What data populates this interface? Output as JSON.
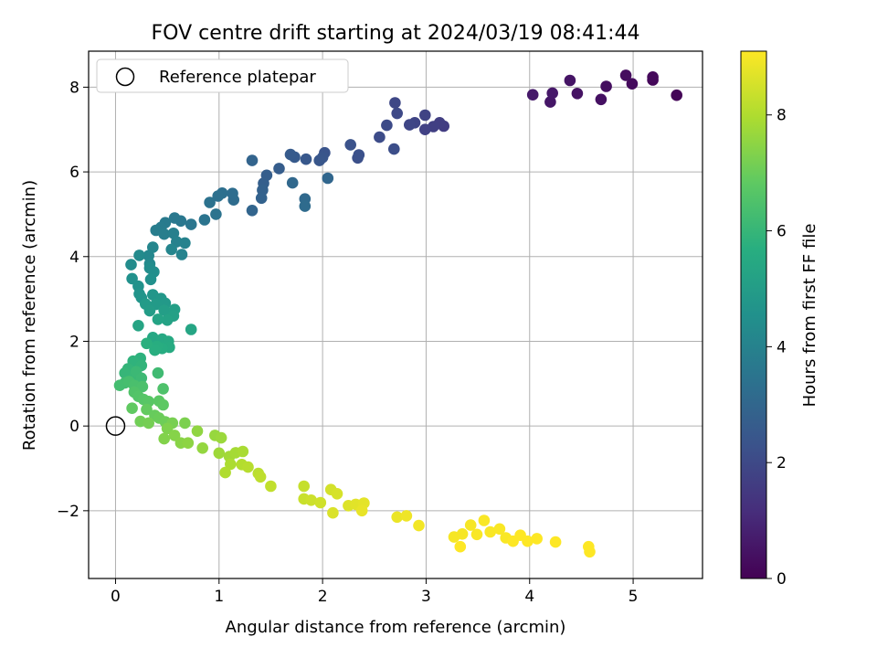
{
  "chart_data": {
    "type": "scatter",
    "title": "FOV centre drift starting at 2024/03/19 08:41:44",
    "xlabel": "Angular distance from reference (arcmin)",
    "ylabel": "Rotation from reference (arcmin)",
    "xlim": [
      -0.26,
      5.67
    ],
    "ylim": [
      -3.6,
      8.85
    ],
    "xticks": [
      0,
      1,
      2,
      3,
      4,
      5
    ],
    "yticks": [
      -2,
      0,
      2,
      4,
      6,
      8
    ],
    "grid": true,
    "legend": {
      "position": "upper-left",
      "entries": [
        "Reference platepar"
      ]
    },
    "reference_point": {
      "x": 0,
      "y": 0,
      "marker": "open-circle"
    },
    "colorbar": {
      "label": "Hours from first FF file",
      "range": [
        0,
        9.1
      ],
      "ticks": [
        0,
        2,
        4,
        6,
        8
      ],
      "colormap": "viridis"
    },
    "points": [
      [
        5.42,
        7.81,
        0.1
      ],
      [
        5.19,
        8.17,
        0.15
      ],
      [
        5.19,
        8.24,
        0.2
      ],
      [
        4.99,
        8.08,
        0.25
      ],
      [
        4.93,
        8.28,
        0.3
      ],
      [
        4.74,
        8.02,
        0.35
      ],
      [
        4.69,
        7.71,
        0.4
      ],
      [
        4.46,
        7.85,
        0.45
      ],
      [
        4.39,
        8.16,
        0.5
      ],
      [
        4.2,
        7.65,
        0.55
      ],
      [
        4.22,
        7.86,
        0.6
      ],
      [
        4.03,
        7.82,
        0.65
      ],
      [
        3.17,
        7.08,
        1.6
      ],
      [
        3.13,
        7.16,
        1.65
      ],
      [
        3.07,
        7.07,
        1.7
      ],
      [
        2.99,
        7.0,
        1.75
      ],
      [
        2.99,
        7.34,
        1.8
      ],
      [
        2.89,
        7.16,
        1.85
      ],
      [
        2.84,
        7.11,
        1.9
      ],
      [
        2.7,
        7.63,
        1.95
      ],
      [
        2.72,
        7.38,
        2.0
      ],
      [
        2.62,
        7.1,
        2.05
      ],
      [
        2.55,
        6.82,
        2.1
      ],
      [
        2.69,
        6.54,
        2.15
      ],
      [
        2.34,
        6.33,
        2.2
      ],
      [
        2.35,
        6.4,
        2.25
      ],
      [
        2.27,
        6.64,
        2.3
      ],
      [
        2.02,
        6.45,
        2.35
      ],
      [
        2.0,
        6.34,
        2.4
      ],
      [
        1.97,
        6.27,
        2.45
      ],
      [
        1.84,
        6.3,
        2.5
      ],
      [
        1.73,
        6.35,
        2.55
      ],
      [
        1.69,
        6.41,
        2.6
      ],
      [
        1.58,
        6.08,
        2.65
      ],
      [
        1.46,
        5.92,
        2.7
      ],
      [
        1.43,
        5.73,
        2.75
      ],
      [
        1.42,
        5.57,
        2.8
      ],
      [
        1.41,
        5.38,
        2.85
      ],
      [
        1.32,
        6.27,
        2.9
      ],
      [
        1.32,
        5.09,
        2.95
      ],
      [
        2.05,
        5.85,
        3.0
      ],
      [
        1.71,
        5.74,
        3.05
      ],
      [
        1.83,
        5.36,
        3.1
      ],
      [
        1.83,
        5.19,
        3.15
      ],
      [
        1.14,
        5.34,
        3.2
      ],
      [
        1.13,
        5.49,
        3.25
      ],
      [
        1.03,
        5.5,
        3.3
      ],
      [
        0.99,
        5.43,
        3.35
      ],
      [
        0.91,
        5.28,
        3.4
      ],
      [
        0.97,
        5.0,
        3.45
      ],
      [
        0.86,
        4.87,
        3.5
      ],
      [
        0.73,
        4.76,
        3.55
      ],
      [
        0.63,
        4.84,
        3.6
      ],
      [
        0.57,
        4.91,
        3.65
      ],
      [
        0.48,
        4.8,
        3.7
      ],
      [
        0.44,
        4.69,
        3.75
      ],
      [
        0.39,
        4.62,
        3.8
      ],
      [
        0.47,
        4.53,
        3.85
      ],
      [
        0.56,
        4.55,
        3.9
      ],
      [
        0.59,
        4.35,
        3.95
      ],
      [
        0.67,
        4.32,
        4.0
      ],
      [
        0.64,
        4.05,
        4.05
      ],
      [
        0.54,
        4.17,
        4.1
      ],
      [
        0.36,
        4.22,
        4.15
      ],
      [
        0.32,
        4.02,
        4.2
      ],
      [
        0.33,
        3.83,
        4.25
      ],
      [
        0.23,
        4.03,
        4.3
      ],
      [
        0.15,
        3.81,
        4.35
      ],
      [
        0.33,
        3.73,
        4.4
      ],
      [
        0.37,
        3.64,
        4.45
      ],
      [
        0.34,
        3.46,
        4.5
      ],
      [
        0.16,
        3.48,
        4.55
      ],
      [
        0.22,
        3.3,
        4.6
      ],
      [
        0.23,
        3.12,
        4.65
      ],
      [
        0.25,
        3.03,
        4.7
      ],
      [
        0.36,
        3.1,
        4.75
      ],
      [
        0.44,
        3.01,
        4.8
      ],
      [
        0.48,
        2.9,
        4.85
      ],
      [
        0.39,
        2.87,
        4.9
      ],
      [
        0.29,
        2.88,
        4.95
      ],
      [
        0.33,
        2.72,
        5.0
      ],
      [
        0.47,
        2.73,
        5.05
      ],
      [
        0.57,
        2.75,
        5.1
      ],
      [
        0.56,
        2.6,
        5.15
      ],
      [
        0.5,
        2.5,
        5.2
      ],
      [
        0.41,
        2.52,
        5.25
      ],
      [
        0.22,
        2.37,
        5.3
      ],
      [
        0.73,
        2.28,
        5.35
      ],
      [
        0.36,
        2.09,
        5.4
      ],
      [
        0.45,
        2.05,
        5.45
      ],
      [
        0.51,
        2.0,
        5.5
      ],
      [
        0.52,
        1.86,
        5.55
      ],
      [
        0.45,
        1.83,
        5.6
      ],
      [
        0.4,
        1.88,
        5.65
      ],
      [
        0.38,
        1.79,
        5.7
      ],
      [
        0.3,
        1.95,
        5.75
      ],
      [
        0.24,
        1.6,
        5.8
      ],
      [
        0.17,
        1.53,
        5.85
      ],
      [
        0.25,
        1.43,
        5.9
      ],
      [
        0.12,
        1.35,
        5.95
      ],
      [
        0.09,
        1.25,
        6.0
      ],
      [
        0.19,
        1.2,
        6.05
      ],
      [
        0.2,
        1.28,
        6.1
      ],
      [
        0.25,
        1.13,
        6.15
      ],
      [
        0.41,
        1.25,
        6.2
      ],
      [
        0.09,
        1.02,
        6.25
      ],
      [
        0.04,
        0.96,
        6.3
      ],
      [
        0.13,
        1.05,
        6.35
      ],
      [
        0.18,
        0.96,
        6.4
      ],
      [
        0.26,
        0.93,
        6.45
      ],
      [
        0.46,
        0.88,
        6.5
      ],
      [
        0.18,
        0.8,
        6.55
      ],
      [
        0.22,
        0.7,
        6.6
      ],
      [
        0.27,
        0.63,
        6.65
      ],
      [
        0.32,
        0.58,
        6.7
      ],
      [
        0.42,
        0.59,
        6.75
      ],
      [
        0.46,
        0.5,
        6.8
      ],
      [
        0.16,
        0.42,
        6.85
      ],
      [
        0.3,
        0.39,
        6.9
      ],
      [
        0.38,
        0.25,
        6.95
      ],
      [
        0.42,
        0.19,
        7.0
      ],
      [
        0.48,
        0.1,
        7.05
      ],
      [
        0.24,
        0.11,
        7.1
      ],
      [
        0.32,
        0.07,
        7.15
      ],
      [
        0.55,
        0.07,
        7.2
      ],
      [
        0.67,
        0.07,
        7.25
      ],
      [
        0.5,
        -0.06,
        7.3
      ],
      [
        0.47,
        -0.3,
        7.35
      ],
      [
        0.57,
        -0.22,
        7.4
      ],
      [
        0.63,
        -0.4,
        7.45
      ],
      [
        0.7,
        -0.4,
        7.5
      ],
      [
        0.79,
        -0.12,
        7.55
      ],
      [
        0.84,
        -0.52,
        7.6
      ],
      [
        0.96,
        -0.22,
        7.65
      ],
      [
        1.02,
        -0.28,
        7.7
      ],
      [
        1.0,
        -0.64,
        7.75
      ],
      [
        1.1,
        -0.72,
        7.8
      ],
      [
        1.16,
        -0.63,
        7.85
      ],
      [
        1.23,
        -0.6,
        7.9
      ],
      [
        1.11,
        -0.9,
        7.95
      ],
      [
        1.06,
        -1.1,
        8.0
      ],
      [
        1.22,
        -0.91,
        8.05
      ],
      [
        1.28,
        -0.97,
        8.1
      ],
      [
        1.38,
        -1.12,
        8.15
      ],
      [
        1.4,
        -1.2,
        8.2
      ],
      [
        1.5,
        -1.42,
        8.25
      ],
      [
        1.82,
        -1.42,
        8.3
      ],
      [
        1.82,
        -1.72,
        8.35
      ],
      [
        1.89,
        -1.75,
        8.4
      ],
      [
        1.98,
        -1.81,
        8.45
      ],
      [
        2.08,
        -1.5,
        8.5
      ],
      [
        2.14,
        -1.6,
        8.55
      ],
      [
        2.1,
        -2.05,
        8.6
      ],
      [
        2.25,
        -1.88,
        8.65
      ],
      [
        2.32,
        -1.85,
        8.7
      ],
      [
        2.4,
        -1.82,
        8.75
      ],
      [
        2.38,
        -2.0,
        8.8
      ],
      [
        2.72,
        -2.15,
        8.85
      ],
      [
        2.81,
        -2.12,
        8.9
      ],
      [
        2.93,
        -2.35,
        8.95
      ],
      [
        3.27,
        -2.62,
        9.0
      ],
      [
        3.35,
        -2.55,
        9.0
      ],
      [
        3.43,
        -2.34,
        9.0
      ],
      [
        3.49,
        -2.56,
        9.05
      ],
      [
        3.56,
        -2.23,
        9.05
      ],
      [
        3.62,
        -2.5,
        9.05
      ],
      [
        3.71,
        -2.43,
        9.05
      ],
      [
        3.77,
        -2.64,
        9.05
      ],
      [
        3.84,
        -2.72,
        9.1
      ],
      [
        3.91,
        -2.58,
        9.1
      ],
      [
        3.98,
        -2.72,
        9.1
      ],
      [
        4.07,
        -2.66,
        9.1
      ],
      [
        4.25,
        -2.74,
        9.1
      ],
      [
        4.57,
        -2.85,
        9.1
      ],
      [
        4.58,
        -2.97,
        9.1
      ],
      [
        3.33,
        -2.85,
        9.1
      ]
    ]
  }
}
